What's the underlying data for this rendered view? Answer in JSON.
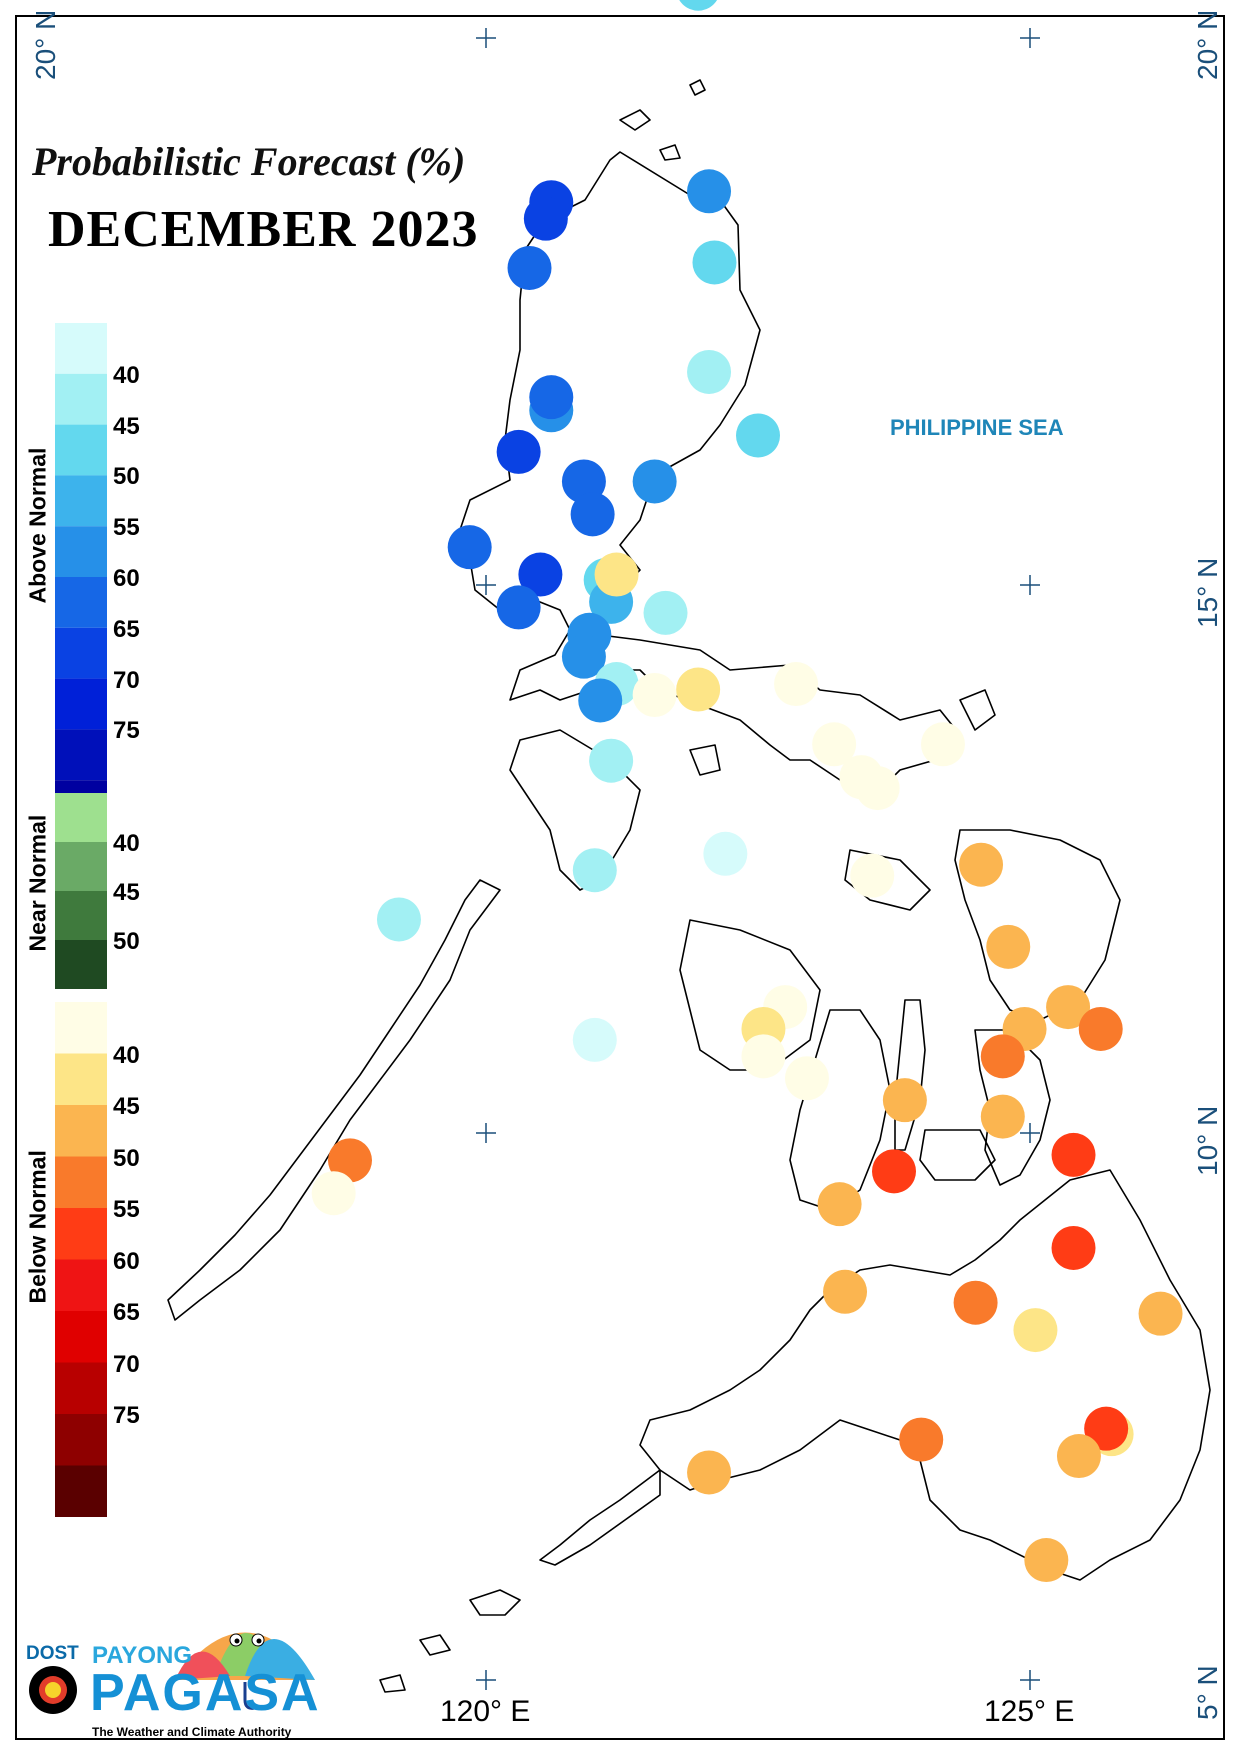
{
  "title": "Probabilistic Forecast (%)",
  "month": "DECEMBER 2023",
  "sea_label": "PHILIPPINE SEA",
  "gridlines": {
    "lat_labels": [
      "20° N",
      "15° N",
      "10° N",
      "5° N"
    ],
    "lat_left_labels": [
      "20° N"
    ],
    "lon_labels": [
      "120° E",
      "125° E"
    ]
  },
  "legend": {
    "above_normal": {
      "title": "Above Normal",
      "ticks": [
        "40",
        "45",
        "50",
        "55",
        "60",
        "65",
        "70",
        "75"
      ],
      "colors": [
        "#d6fbfb",
        "#a2f0f3",
        "#63d8ee",
        "#3db3ec",
        "#2690e8",
        "#1667e6",
        "#0a42e3",
        "#0020d8",
        "#0010ba",
        "#0000a0"
      ]
    },
    "near_normal": {
      "title": "Near Normal",
      "ticks": [
        "40",
        "45",
        "50"
      ],
      "colors": [
        "#9ee08f",
        "#6aaa66",
        "#3f7a3d",
        "#1f4a22"
      ]
    },
    "below_normal": {
      "title": "Below Normal",
      "ticks": [
        "40",
        "45",
        "50",
        "55",
        "60",
        "65",
        "70",
        "75"
      ],
      "colors": [
        "#fffde6",
        "#fde587",
        "#fbb550",
        "#f97a2b",
        "#ff3c15",
        "#ef1414",
        "#e00000",
        "#b80000",
        "#8e0000",
        "#5a0000"
      ]
    }
  },
  "stations": [
    {
      "lon": 121.95,
      "lat": 20.45,
      "category": "above",
      "level": 2
    },
    {
      "lon": 122.05,
      "lat": 18.6,
      "category": "above",
      "level": 4
    },
    {
      "lon": 120.6,
      "lat": 18.5,
      "category": "above",
      "level": 6
    },
    {
      "lon": 120.55,
      "lat": 18.35,
      "category": "above",
      "level": 6
    },
    {
      "lon": 120.4,
      "lat": 17.9,
      "category": "above",
      "level": 5
    },
    {
      "lon": 122.1,
      "lat": 17.95,
      "category": "above",
      "level": 2
    },
    {
      "lon": 122.05,
      "lat": 16.95,
      "category": "above",
      "level": 1
    },
    {
      "lon": 120.6,
      "lat": 16.6,
      "category": "above",
      "level": 4
    },
    {
      "lon": 120.6,
      "lat": 16.72,
      "category": "above",
      "level": 5
    },
    {
      "lon": 122.5,
      "lat": 16.37,
      "category": "above",
      "level": 2
    },
    {
      "lon": 120.3,
      "lat": 16.22,
      "category": "above",
      "level": 6
    },
    {
      "lon": 120.9,
      "lat": 15.95,
      "category": "above",
      "level": 5
    },
    {
      "lon": 121.55,
      "lat": 15.95,
      "category": "above",
      "level": 4
    },
    {
      "lon": 120.98,
      "lat": 15.65,
      "category": "above",
      "level": 5
    },
    {
      "lon": 119.85,
      "lat": 15.35,
      "category": "above",
      "level": 5
    },
    {
      "lon": 120.5,
      "lat": 15.1,
      "category": "above",
      "level": 6
    },
    {
      "lon": 121.1,
      "lat": 15.05,
      "category": "above",
      "level": 2
    },
    {
      "lon": 121.15,
      "lat": 14.85,
      "category": "above",
      "level": 3
    },
    {
      "lon": 121.2,
      "lat": 15.1,
      "category": "below",
      "level": 1
    },
    {
      "lon": 120.3,
      "lat": 14.8,
      "category": "above",
      "level": 5
    },
    {
      "lon": 121.65,
      "lat": 14.75,
      "category": "above",
      "level": 1
    },
    {
      "lon": 120.95,
      "lat": 14.55,
      "category": "above",
      "level": 4
    },
    {
      "lon": 120.9,
      "lat": 14.35,
      "category": "above",
      "level": 4
    },
    {
      "lon": 121.2,
      "lat": 14.1,
      "category": "above",
      "level": 1
    },
    {
      "lon": 121.05,
      "lat": 13.95,
      "category": "above",
      "level": 4
    },
    {
      "lon": 121.55,
      "lat": 14.0,
      "category": "below",
      "level": 0
    },
    {
      "lon": 121.95,
      "lat": 14.05,
      "category": "below",
      "level": 1
    },
    {
      "lon": 122.85,
      "lat": 14.1,
      "category": "below",
      "level": 0
    },
    {
      "lon": 121.15,
      "lat": 13.4,
      "category": "above",
      "level": 1
    },
    {
      "lon": 123.2,
      "lat": 13.55,
      "category": "below",
      "level": 0
    },
    {
      "lon": 124.2,
      "lat": 13.55,
      "category": "below",
      "level": 0
    },
    {
      "lon": 123.6,
      "lat": 13.15,
      "category": "below",
      "level": 0
    },
    {
      "lon": 123.45,
      "lat": 13.25,
      "category": "below",
      "level": 0
    },
    {
      "lon": 122.2,
      "lat": 12.55,
      "category": "above",
      "level": 0
    },
    {
      "lon": 121.0,
      "lat": 12.4,
      "category": "above",
      "level": 1
    },
    {
      "lon": 123.55,
      "lat": 12.35,
      "category": "below",
      "level": 0
    },
    {
      "lon": 124.55,
      "lat": 12.45,
      "category": "below",
      "level": 2
    },
    {
      "lon": 119.2,
      "lat": 11.95,
      "category": "above",
      "level": 1
    },
    {
      "lon": 122.75,
      "lat": 11.15,
      "category": "below",
      "level": 0
    },
    {
      "lon": 122.55,
      "lat": 10.95,
      "category": "below",
      "level": 1
    },
    {
      "lon": 124.8,
      "lat": 11.7,
      "category": "below",
      "level": 2
    },
    {
      "lon": 125.35,
      "lat": 11.15,
      "category": "below",
      "level": 2
    },
    {
      "lon": 124.95,
      "lat": 10.95,
      "category": "below",
      "level": 2
    },
    {
      "lon": 125.65,
      "lat": 10.95,
      "category": "below",
      "level": 3
    },
    {
      "lon": 121.0,
      "lat": 10.85,
      "category": "above",
      "level": 0
    },
    {
      "lon": 122.55,
      "lat": 10.7,
      "category": "below",
      "level": 0
    },
    {
      "lon": 124.75,
      "lat": 10.7,
      "category": "below",
      "level": 3
    },
    {
      "lon": 122.95,
      "lat": 10.5,
      "category": "below",
      "level": 0
    },
    {
      "lon": 123.85,
      "lat": 10.3,
      "category": "below",
      "level": 2
    },
    {
      "lon": 124.75,
      "lat": 10.15,
      "category": "below",
      "level": 2
    },
    {
      "lon": 118.75,
      "lat": 9.75,
      "category": "below",
      "level": 3
    },
    {
      "lon": 118.6,
      "lat": 9.45,
      "category": "below",
      "level": 0
    },
    {
      "lon": 123.75,
      "lat": 9.65,
      "category": "below",
      "level": 4
    },
    {
      "lon": 125.4,
      "lat": 9.8,
      "category": "below",
      "level": 4
    },
    {
      "lon": 123.25,
      "lat": 9.35,
      "category": "below",
      "level": 2
    },
    {
      "lon": 125.4,
      "lat": 8.95,
      "category": "below",
      "level": 4
    },
    {
      "lon": 123.3,
      "lat": 8.55,
      "category": "below",
      "level": 2
    },
    {
      "lon": 124.5,
      "lat": 8.45,
      "category": "below",
      "level": 3
    },
    {
      "lon": 125.05,
      "lat": 8.2,
      "category": "below",
      "level": 1
    },
    {
      "lon": 126.2,
      "lat": 8.35,
      "category": "below",
      "level": 2
    },
    {
      "lon": 124.0,
      "lat": 7.2,
      "category": "below",
      "level": 3
    },
    {
      "lon": 125.75,
      "lat": 7.25,
      "category": "below",
      "level": 1
    },
    {
      "lon": 125.7,
      "lat": 7.3,
      "category": "below",
      "level": 4
    },
    {
      "lon": 125.45,
      "lat": 7.05,
      "category": "below",
      "level": 2
    },
    {
      "lon": 122.05,
      "lat": 6.9,
      "category": "below",
      "level": 2
    },
    {
      "lon": 125.15,
      "lat": 6.1,
      "category": "below",
      "level": 2
    }
  ]
}
